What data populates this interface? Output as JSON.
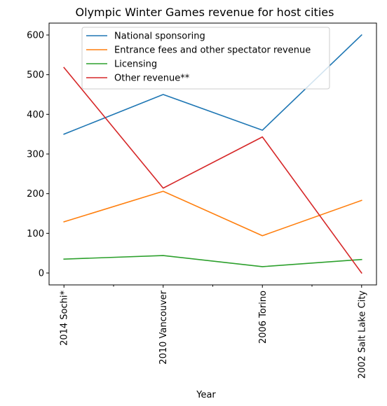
{
  "chart_data": {
    "type": "line",
    "title": "Olympic Winter Games revenue for host cities",
    "xlabel": "Year",
    "ylabel": "",
    "categories": [
      "2014 Sochi*",
      "2010 Vancouver",
      "2006 Torino",
      "2002 Salt Lake City"
    ],
    "ylim": [
      -30,
      630
    ],
    "yticks": [
      0,
      100,
      200,
      300,
      400,
      500,
      600
    ],
    "grid": false,
    "legend_position": "top-center",
    "series": [
      {
        "name": "National sponsoring",
        "color": "#1f77b4",
        "values": [
          350,
          450,
          360,
          600
        ]
      },
      {
        "name": "Entrance fees and other spectator revenue",
        "color": "#ff7f0e",
        "values": [
          129,
          206,
          94,
          183
        ]
      },
      {
        "name": "Licensing",
        "color": "#2ca02c",
        "values": [
          35,
          44,
          16,
          34
        ]
      },
      {
        "name": "Other revenue**",
        "color": "#d62728",
        "values": [
          518,
          214,
          343,
          0
        ]
      }
    ]
  }
}
